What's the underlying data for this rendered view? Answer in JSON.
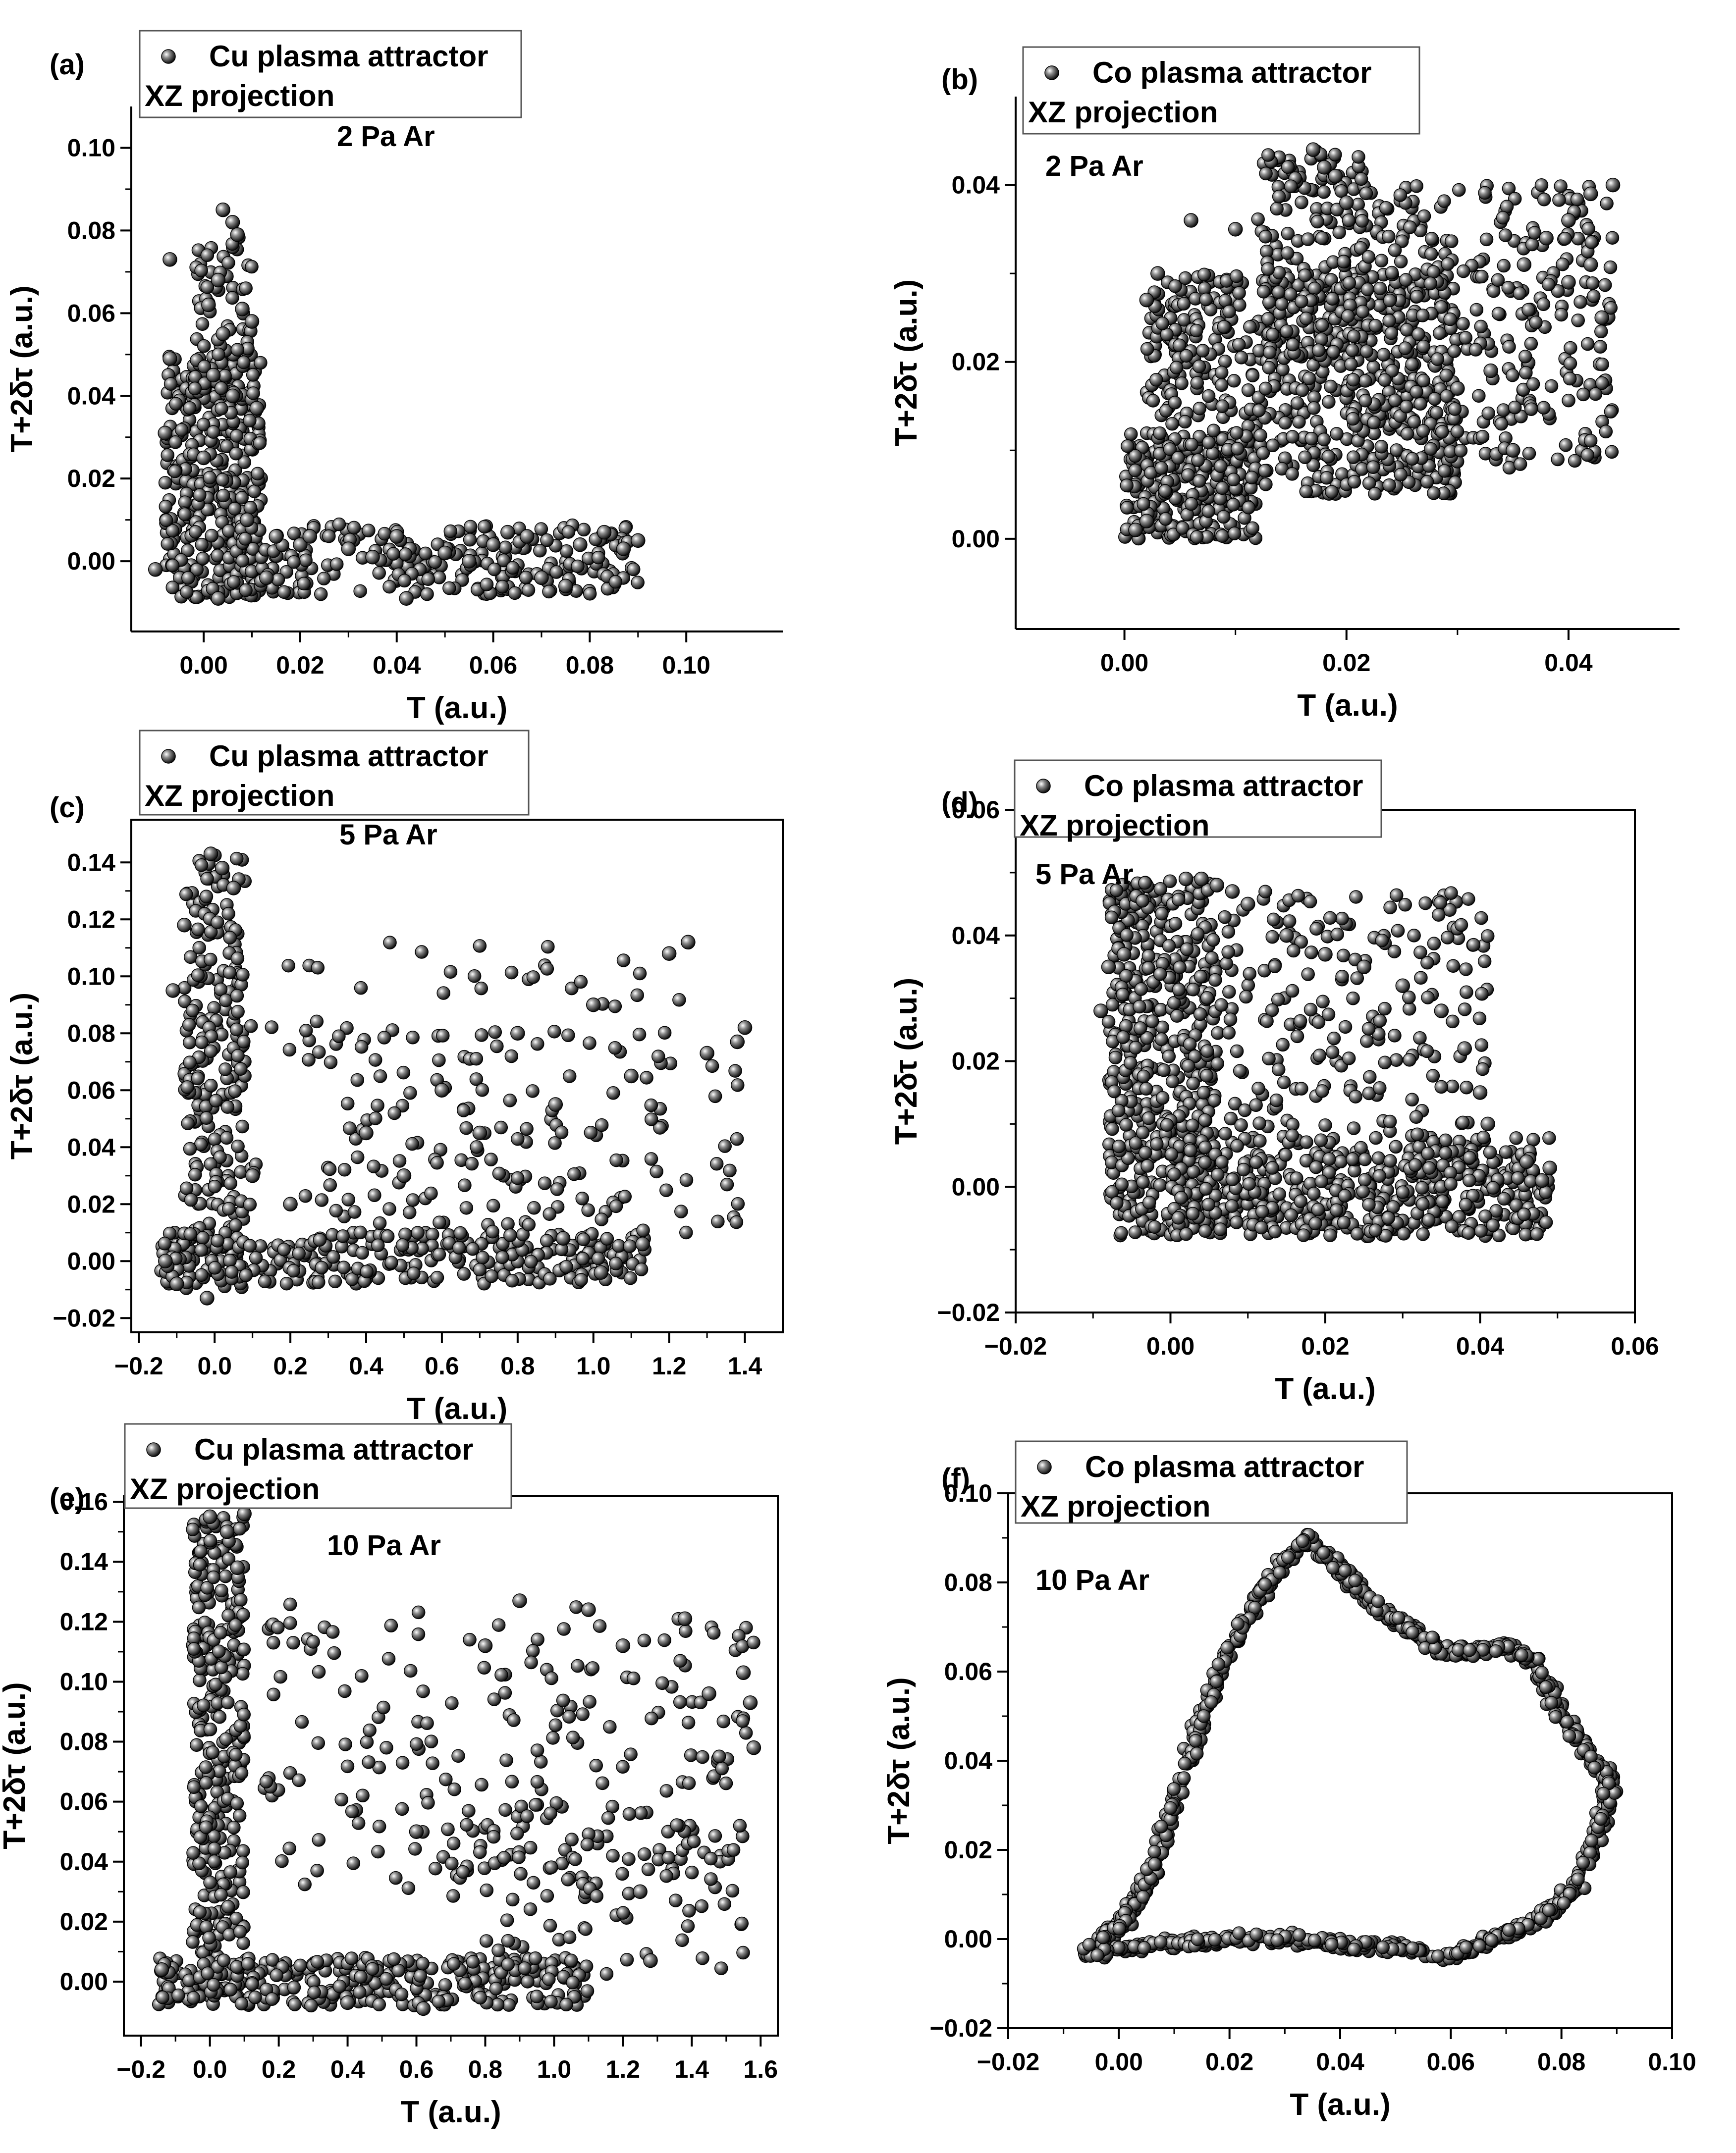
{
  "chart_data": [
    {
      "panel": "(a)",
      "type": "scatter",
      "legend": "Cu plasma attractor",
      "subtitle": "XZ projection",
      "annotation": "2 Pa Ar",
      "xlabel": "T (a.u.)",
      "ylabel": "T+2δτ (a.u.)",
      "xlim": [
        -0.015,
        0.12
      ],
      "ylim": [
        -0.017,
        0.11
      ],
      "xticks": [
        "0.00",
        "0.02",
        "0.04",
        "0.06",
        "0.08",
        "0.10"
      ],
      "xtick_values": [
        0,
        0.02,
        0.04,
        0.06,
        0.08,
        0.1
      ],
      "yticks": [
        "0.00",
        "0.02",
        "0.04",
        "0.06",
        "0.08",
        "0.10"
      ],
      "ytick_values": [
        0,
        0.02,
        0.04,
        0.06,
        0.08,
        0.1
      ],
      "points": [
        [
          -0.007,
          0.073
        ],
        [
          -0.007,
          0.049
        ],
        [
          -0.008,
          0.031
        ],
        [
          0.004,
          0.085
        ],
        [
          0.006,
          0.082
        ],
        [
          0.007,
          0.079
        ],
        [
          0.003,
          0.068
        ],
        [
          0.001,
          0.062
        ],
        [
          0.004,
          0.055
        ],
        [
          0.008,
          0.061
        ],
        [
          0.01,
          0.058
        ],
        [
          0.011,
          0.037
        ],
        [
          0.002,
          0.045
        ],
        [
          0.006,
          0.04
        ],
        [
          0.0,
          0.025
        ],
        [
          0.009,
          0.01
        ],
        [
          0.015,
          0.006
        ],
        [
          0.02,
          0.004
        ],
        [
          0.03,
          0.003
        ],
        [
          0.04,
          0.006
        ],
        [
          0.042,
          -0.009
        ],
        [
          0.05,
          0.002
        ],
        [
          0.06,
          0.004
        ],
        [
          0.067,
          0.006
        ],
        [
          0.07,
          -0.004
        ],
        [
          0.075,
          -0.006
        ],
        [
          0.078,
          0.004
        ],
        [
          0.083,
          0.007
        ],
        [
          0.087,
          0.003
        ],
        [
          0.09,
          0.005
        ],
        [
          -0.01,
          -0.002
        ],
        [
          0.003,
          -0.009
        ],
        [
          0.013,
          -0.004
        ],
        [
          0.022,
          0.006
        ],
        [
          0.035,
          0.001
        ],
        [
          0.055,
          0.0
        ],
        [
          0.063,
          0.007
        ]
      ],
      "clusters": [
        {
          "x_range": [
            -0.008,
            0.012
          ],
          "y_range": [
            -0.009,
            0.05
          ],
          "count": 380
        },
        {
          "x_range": [
            -0.002,
            0.01
          ],
          "y_range": [
            0.04,
            0.08
          ],
          "count": 70
        },
        {
          "x_range": [
            0.005,
            0.09
          ],
          "y_range": [
            -0.008,
            0.009
          ],
          "count": 250
        }
      ]
    },
    {
      "panel": "(b)",
      "type": "scatter",
      "legend": "Co plasma attractor",
      "subtitle": "XZ projection",
      "annotation": "2 Pa Ar",
      "xlabel": "T (a.u.)",
      "ylabel": "T+2δτ (a.u.)",
      "xlim": [
        -0.0098,
        0.05
      ],
      "ylim": [
        -0.0102,
        0.05
      ],
      "xticks": [
        "0.00",
        "0.02",
        "0.04"
      ],
      "xtick_values": [
        0,
        0.02,
        0.04
      ],
      "yticks": [
        "0.00",
        "0.02",
        "0.04"
      ],
      "ytick_values": [
        0,
        0.02,
        0.04
      ],
      "points": [
        [
          0.017,
          0.044
        ],
        [
          0.018,
          0.042
        ],
        [
          0.019,
          0.041
        ],
        [
          0.02,
          0.038
        ],
        [
          0.044,
          0.04
        ],
        [
          0.042,
          0.039
        ],
        [
          0.04,
          0.036
        ],
        [
          0.038,
          0.034
        ],
        [
          0.036,
          0.031
        ],
        [
          0.006,
          0.036
        ],
        [
          0.003,
          0.03
        ],
        [
          0.002,
          0.027
        ],
        [
          0.01,
          0.035
        ],
        [
          0.035,
          0.01
        ],
        [
          0.04,
          0.029
        ],
        [
          0.042,
          0.031
        ],
        [
          0.043,
          0.025
        ],
        [
          0.001,
          0.001
        ],
        [
          0.002,
          0.002
        ],
        [
          0.03,
          0.017
        ],
        [
          0.033,
          0.019
        ]
      ],
      "clusters": [
        {
          "x_range": [
            0.0,
            0.012
          ],
          "y_range": [
            0.0,
            0.012
          ],
          "count": 250
        },
        {
          "x_range": [
            0.002,
            0.03
          ],
          "y_range": [
            0.005,
            0.03
          ],
          "count": 600
        },
        {
          "x_range": [
            0.012,
            0.022
          ],
          "y_range": [
            0.02,
            0.044
          ],
          "count": 160
        },
        {
          "x_range": [
            0.02,
            0.044
          ],
          "y_range": [
            0.008,
            0.04
          ],
          "count": 350
        }
      ]
    },
    {
      "panel": "(c)",
      "type": "scatter",
      "legend": "Cu plasma attractor",
      "subtitle": "XZ projection",
      "annotation": "5 Pa Ar",
      "xlabel": "T (a.u.)",
      "ylabel": "T+2δτ (a.u.)",
      "xlim": [
        -0.22,
        1.5
      ],
      "ylim": [
        -0.025,
        0.155
      ],
      "xticks": [
        "−0.2",
        "0.0",
        "0.2",
        "0.4",
        "0.6",
        "0.8",
        "1.0",
        "1.2",
        "1.4"
      ],
      "xtick_values": [
        -0.2,
        0,
        0.2,
        0.4,
        0.6,
        0.8,
        1.0,
        1.2,
        1.4
      ],
      "yticks": [
        "−0.02",
        "0.00",
        "0.02",
        "0.04",
        "0.06",
        "0.08",
        "0.10",
        "0.12",
        "0.14"
      ],
      "ytick_values": [
        -0.02,
        0,
        0.02,
        0.04,
        0.06,
        0.08,
        0.1,
        0.12,
        0.14
      ],
      "points": [
        [
          -0.01,
          0.143
        ],
        [
          0.02,
          0.138
        ],
        [
          0.05,
          0.131
        ],
        [
          -0.08,
          0.118
        ],
        [
          -0.11,
          0.095
        ],
        [
          0.1,
          0.03
        ],
        [
          0.2,
          0.02
        ],
        [
          0.4,
          0.045
        ],
        [
          0.6,
          0.06
        ],
        [
          0.8,
          0.08
        ],
        [
          1.0,
          0.09
        ],
        [
          1.2,
          0.108
        ],
        [
          1.25,
          0.112
        ],
        [
          0.5,
          0.03
        ],
        [
          0.7,
          0.045
        ],
        [
          0.9,
          0.055
        ],
        [
          1.1,
          0.065
        ],
        [
          1.3,
          0.073
        ],
        [
          1.38,
          0.077
        ],
        [
          1.4,
          0.082
        ],
        [
          1.13,
          0.006
        ],
        [
          1.02,
          -0.004
        ],
        [
          0.92,
          0.008
        ],
        [
          -0.13,
          0.0
        ],
        [
          -0.1,
          -0.008
        ],
        [
          -0.02,
          -0.013
        ]
      ],
      "clusters": [
        {
          "x_range": [
            -0.08,
            0.08
          ],
          "y_range": [
            -0.01,
            0.143
          ],
          "count": 240
        },
        {
          "x_range": [
            -0.15,
            1.15
          ],
          "y_range": [
            -0.008,
            0.01
          ],
          "count": 280
        },
        {
          "x_range": [
            0.05,
            1.25
          ],
          "y_range": [
            0.005,
            0.112
          ],
          "count": 110
        },
        {
          "x_range": [
            0.3,
            1.4
          ],
          "y_range": [
            0.01,
            0.082
          ],
          "count": 100
        }
      ]
    },
    {
      "panel": "(d)",
      "type": "scatter",
      "legend": "Co plasma attractor",
      "subtitle": "XZ projection",
      "annotation": "5 Pa Ar",
      "xlabel": "T (a.u.)",
      "ylabel": "T+2δτ (a.u.)",
      "xlim": [
        -0.02,
        0.06
      ],
      "ylim": [
        -0.02,
        0.06
      ],
      "xticks": [
        "−0.02",
        "0.00",
        "0.02",
        "0.04",
        "0.06"
      ],
      "xtick_values": [
        -0.02,
        0,
        0.02,
        0.04,
        0.06
      ],
      "yticks": [
        "−0.02",
        "0.00",
        "0.02",
        "0.04",
        "0.06"
      ],
      "ytick_values": [
        -0.02,
        0,
        0.02,
        0.04,
        0.06
      ],
      "points": [
        [
          0.002,
          0.049
        ],
        [
          0.004,
          0.049
        ],
        [
          0.006,
          0.048
        ],
        [
          0.008,
          0.047
        ],
        [
          0.01,
          0.045
        ],
        [
          0.015,
          0.04
        ],
        [
          0.02,
          0.037
        ],
        [
          0.025,
          0.035
        ],
        [
          0.03,
          0.032
        ],
        [
          0.035,
          0.028
        ],
        [
          0.038,
          0.022
        ],
        [
          0.04,
          0.015
        ],
        [
          0.041,
          0.01
        ],
        [
          -0.009,
          0.028
        ],
        [
          -0.008,
          0.035
        ],
        [
          -0.006,
          0.037
        ],
        [
          0.049,
          0.003
        ],
        [
          0.048,
          0.001
        ],
        [
          0.046,
          0.004
        ]
      ],
      "clusters": [
        {
          "x_range": [
            -0.008,
            0.006
          ],
          "y_range": [
            -0.008,
            0.049
          ],
          "count": 500
        },
        {
          "x_range": [
            0.0,
            0.049
          ],
          "y_range": [
            -0.008,
            0.008
          ],
          "count": 500
        },
        {
          "x_range": [
            0.006,
            0.041
          ],
          "y_range": [
            0.008,
            0.047
          ],
          "count": 200
        }
      ]
    },
    {
      "panel": "(e)",
      "type": "scatter",
      "legend": "Cu plasma attractor",
      "subtitle": "XZ projection",
      "annotation": "10 Pa Ar",
      "xlabel": "T (a.u.)",
      "ylabel": "T+2δτ (a.u.)",
      "xlim": [
        -0.25,
        1.65
      ],
      "ylim": [
        -0.018,
        0.162
      ],
      "xticks": [
        "−0.2",
        "0.0",
        "0.2",
        "0.4",
        "0.6",
        "0.8",
        "1.0",
        "1.2",
        "1.4",
        "1.6"
      ],
      "xtick_values": [
        -0.2,
        0,
        0.2,
        0.4,
        0.6,
        0.8,
        1.0,
        1.2,
        1.4,
        1.6
      ],
      "yticks": [
        "0.00",
        "0.02",
        "0.04",
        "0.06",
        "0.08",
        "0.10",
        "0.12",
        "0.14",
        "0.16"
      ],
      "ytick_values": [
        0,
        0.02,
        0.04,
        0.06,
        0.08,
        0.1,
        0.12,
        0.14,
        0.16
      ],
      "points": [
        [
          0.0,
          0.155
        ],
        [
          0.05,
          0.15
        ],
        [
          0.1,
          0.156
        ],
        [
          0.08,
          0.138
        ],
        [
          0.9,
          0.127
        ],
        [
          1.1,
          0.124
        ],
        [
          1.38,
          0.121
        ],
        [
          1.55,
          0.103
        ],
        [
          1.57,
          0.093
        ],
        [
          1.58,
          0.078
        ],
        [
          0.6,
          0.05
        ],
        [
          1.25,
          0.03
        ],
        [
          1.28,
          0.007
        ],
        [
          -0.14,
          0.004
        ],
        [
          0.62,
          -0.009
        ],
        [
          0.4,
          -0.007
        ],
        [
          0.8,
          0.112
        ],
        [
          1.2,
          0.112
        ],
        [
          1.45,
          0.096
        ]
      ],
      "clusters": [
        {
          "x_range": [
            -0.05,
            0.1
          ],
          "y_range": [
            -0.005,
            0.155
          ],
          "count": 320
        },
        {
          "x_range": [
            -0.15,
            1.1
          ],
          "y_range": [
            -0.008,
            0.008
          ],
          "count": 320
        },
        {
          "x_range": [
            0.15,
            1.58
          ],
          "y_range": [
            0.03,
            0.127
          ],
          "count": 200
        },
        {
          "x_range": [
            0.7,
            1.55
          ],
          "y_range": [
            0.0,
            0.06
          ],
          "count": 100
        }
      ]
    },
    {
      "panel": "(f)",
      "type": "scatter",
      "legend": "Co plasma attractor",
      "subtitle": "XZ projection",
      "annotation": "10 Pa Ar",
      "xlabel": "T (a.u.)",
      "ylabel": "T+2δτ (a.u.)",
      "xlim": [
        -0.02,
        0.1
      ],
      "ylim": [
        -0.02,
        0.1
      ],
      "xticks": [
        "−0.02",
        "0.00",
        "0.02",
        "0.04",
        "0.06",
        "0.08",
        "0.10"
      ],
      "xtick_values": [
        -0.02,
        0,
        0.02,
        0.04,
        0.06,
        0.08,
        0.1
      ],
      "yticks": [
        "−0.02",
        "0.00",
        "0.02",
        "0.04",
        "0.06",
        "0.08",
        "0.10"
      ],
      "ytick_values": [
        -0.02,
        0,
        0.02,
        0.04,
        0.06,
        0.08,
        0.1
      ],
      "points": [],
      "loop": [
        [
          -0.006,
          -0.003
        ],
        [
          0.0,
          0.003
        ],
        [
          0.005,
          0.012
        ],
        [
          0.01,
          0.03
        ],
        [
          0.015,
          0.05
        ],
        [
          0.022,
          0.07
        ],
        [
          0.028,
          0.082
        ],
        [
          0.034,
          0.09
        ],
        [
          0.04,
          0.083
        ],
        [
          0.046,
          0.075
        ],
        [
          0.052,
          0.07
        ],
        [
          0.058,
          0.065
        ],
        [
          0.064,
          0.064
        ],
        [
          0.07,
          0.066
        ],
        [
          0.075,
          0.062
        ],
        [
          0.08,
          0.05
        ],
        [
          0.086,
          0.04
        ],
        [
          0.089,
          0.035
        ],
        [
          0.087,
          0.025
        ],
        [
          0.083,
          0.012
        ],
        [
          0.076,
          0.004
        ],
        [
          0.068,
          0.0
        ],
        [
          0.06,
          -0.004
        ],
        [
          0.05,
          -0.002
        ],
        [
          0.04,
          -0.001
        ],
        [
          0.03,
          0.0
        ],
        [
          0.02,
          0.0
        ],
        [
          0.01,
          -0.001
        ],
        [
          0.0,
          -0.002
        ],
        [
          -0.006,
          -0.003
        ]
      ],
      "loop_count": 1100
    }
  ]
}
